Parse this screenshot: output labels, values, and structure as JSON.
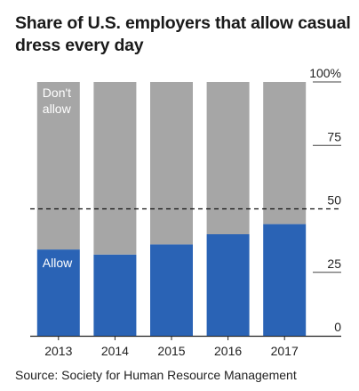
{
  "title": "Share of U.S. employers that allow casual dress every day",
  "source": "Source: Society for Human Resource Management",
  "chart_data": {
    "type": "bar",
    "stacked": true,
    "categories": [
      "2013",
      "2014",
      "2015",
      "2016",
      "2017"
    ],
    "series": [
      {
        "name": "Allow",
        "color": "#2a63b5",
        "values": [
          34,
          32,
          36,
          40,
          44
        ]
      },
      {
        "name": "Don't allow",
        "color": "#a6a6a6",
        "values": [
          66,
          68,
          64,
          60,
          56
        ]
      }
    ],
    "inline_labels": {
      "allow": "Allow",
      "dont_allow_line1": "Don't",
      "dont_allow_line2": "allow"
    },
    "yticks": [
      {
        "value": 100,
        "label": "100%"
      },
      {
        "value": 75,
        "label": "75"
      },
      {
        "value": 50,
        "label": "50"
      },
      {
        "value": 25,
        "label": "25"
      },
      {
        "value": 0,
        "label": "0"
      }
    ],
    "ylim": [
      0,
      100
    ],
    "reference_line": 50,
    "axis_position": "right",
    "grid": true
  }
}
